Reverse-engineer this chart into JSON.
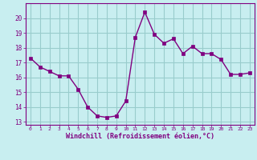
{
  "x": [
    0,
    1,
    2,
    3,
    4,
    5,
    6,
    7,
    8,
    9,
    10,
    11,
    12,
    13,
    14,
    15,
    16,
    17,
    18,
    19,
    20,
    21,
    22,
    23
  ],
  "y": [
    17.3,
    16.7,
    16.4,
    16.1,
    16.1,
    15.2,
    14.0,
    13.4,
    13.3,
    13.4,
    14.4,
    18.7,
    20.4,
    18.9,
    18.3,
    18.6,
    17.6,
    18.1,
    17.6,
    17.6,
    17.2,
    16.2,
    16.2,
    16.3
  ],
  "line_color": "#800080",
  "marker_color": "#800080",
  "bg_color": "#c8eef0",
  "grid_color": "#99cccc",
  "xlabel": "Windchill (Refroidissement éolien,°C)",
  "xlabel_color": "#800080",
  "tick_color": "#800080",
  "ylim": [
    12.8,
    21.0
  ],
  "xlim": [
    -0.5,
    23.5
  ],
  "yticks": [
    13,
    14,
    15,
    16,
    17,
    18,
    19,
    20
  ],
  "xticks": [
    0,
    1,
    2,
    3,
    4,
    5,
    6,
    7,
    8,
    9,
    10,
    11,
    12,
    13,
    14,
    15,
    16,
    17,
    18,
    19,
    20,
    21,
    22,
    23
  ],
  "xtick_labels": [
    "0",
    "1",
    "2",
    "3",
    "4",
    "5",
    "6",
    "7",
    "8",
    "9",
    "10",
    "11",
    "12",
    "13",
    "14",
    "15",
    "16",
    "17",
    "18",
    "19",
    "20",
    "21",
    "22",
    "23"
  ]
}
